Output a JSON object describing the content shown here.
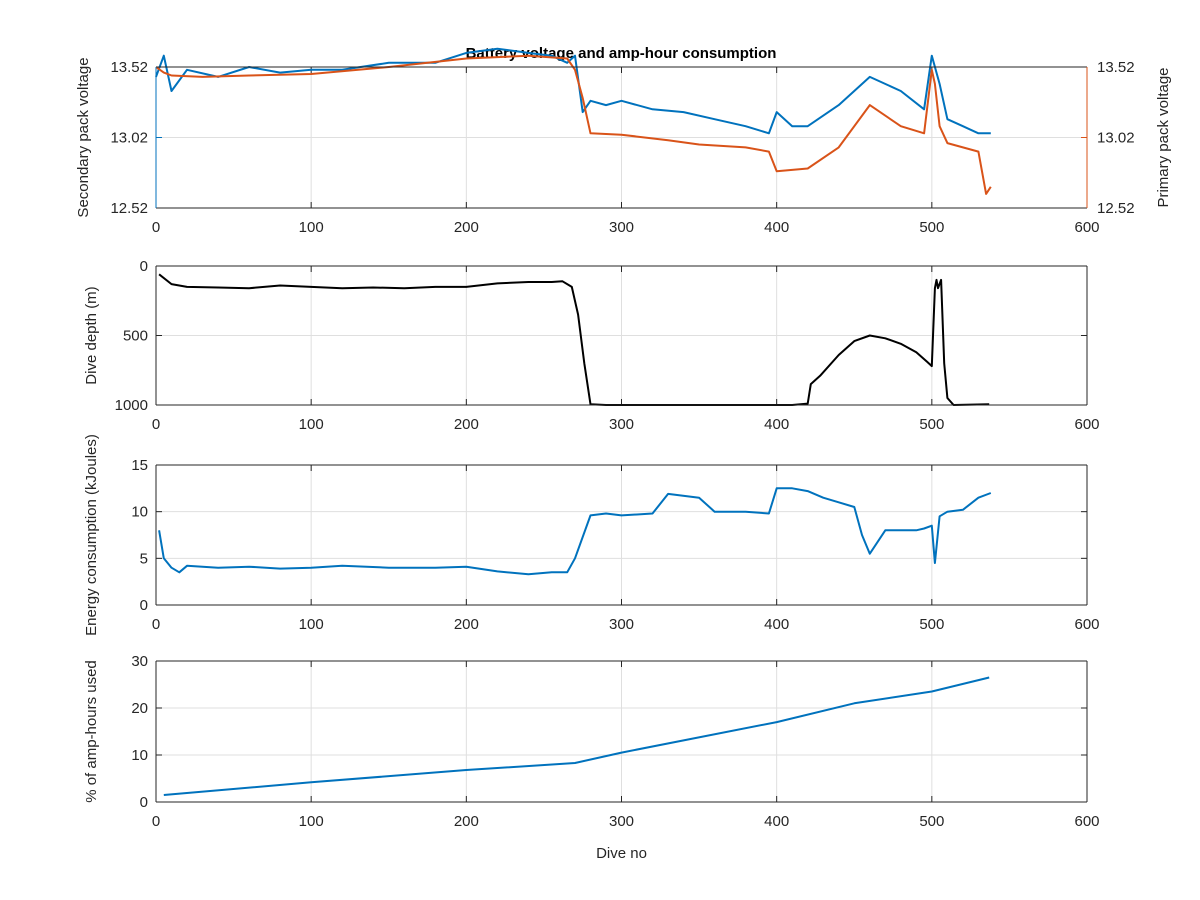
{
  "figure": {
    "title": "Battery voltage and amp-hour consumption",
    "colors": {
      "blue": "#0072bd",
      "orange": "#d95319",
      "black": "#000000",
      "axis": "#262626",
      "grid": "#dfdfdf"
    }
  },
  "chart_data": [
    {
      "type": "line",
      "title": "Battery voltage and amp-hour consumption",
      "xlabel": "",
      "ylabel": "Secondary pack voltage",
      "ylabel_right": "Primary pack voltage",
      "xlim": [
        0,
        600
      ],
      "ylim": [
        12.52,
        13.52
      ],
      "ylim_right": [
        12.52,
        13.52
      ],
      "xticks": [
        "0",
        "100",
        "200",
        "300",
        "400",
        "500",
        "600"
      ],
      "yticks": [
        "12.52",
        "13.02",
        "13.52"
      ],
      "yticks_right": [
        "12.52",
        "13.02",
        "13.52"
      ],
      "grid": true,
      "series": [
        {
          "axis": "left",
          "color": "#0072bd",
          "x": [
            0,
            5,
            10,
            20,
            40,
            60,
            80,
            100,
            120,
            150,
            180,
            200,
            220,
            240,
            255,
            265,
            270,
            275,
            280,
            290,
            300,
            320,
            340,
            360,
            380,
            395,
            400,
            410,
            420,
            440,
            460,
            480,
            495,
            500,
            505,
            510,
            520,
            530,
            538
          ],
          "y": [
            13.45,
            13.6,
            13.35,
            13.5,
            13.45,
            13.52,
            13.48,
            13.5,
            13.5,
            13.55,
            13.55,
            13.62,
            13.65,
            13.62,
            13.6,
            13.55,
            13.6,
            13.2,
            13.28,
            13.25,
            13.28,
            13.22,
            13.2,
            13.15,
            13.1,
            13.05,
            13.2,
            13.1,
            13.1,
            13.25,
            13.45,
            13.35,
            13.22,
            13.6,
            13.4,
            13.15,
            13.1,
            13.05,
            13.05
          ]
        },
        {
          "axis": "right",
          "color": "#d95319",
          "x": [
            0,
            5,
            10,
            30,
            60,
            100,
            150,
            200,
            240,
            265,
            270,
            275,
            280,
            300,
            330,
            350,
            380,
            395,
            400,
            410,
            420,
            440,
            460,
            480,
            495,
            500,
            502,
            505,
            510,
            520,
            530,
            535,
            538
          ],
          "y": [
            13.52,
            13.48,
            13.46,
            13.45,
            13.46,
            13.47,
            13.52,
            13.58,
            13.6,
            13.58,
            13.5,
            13.3,
            13.05,
            13.04,
            13.0,
            12.97,
            12.95,
            12.92,
            12.78,
            12.79,
            12.8,
            12.95,
            13.25,
            13.1,
            13.05,
            13.5,
            13.4,
            13.1,
            12.98,
            12.95,
            12.92,
            12.62,
            12.67
          ]
        }
      ]
    },
    {
      "type": "line",
      "xlabel": "",
      "ylabel": "Dive depth (m)",
      "xlim": [
        0,
        600
      ],
      "ylim": [
        1000,
        0
      ],
      "y_reversed": true,
      "xticks": [
        "0",
        "100",
        "200",
        "300",
        "400",
        "500",
        "600"
      ],
      "yticks": [
        "0",
        "500",
        "1000"
      ],
      "grid": true,
      "series": [
        {
          "color": "#000000",
          "x": [
            2,
            10,
            20,
            40,
            60,
            80,
            100,
            120,
            140,
            160,
            180,
            200,
            220,
            240,
            255,
            262,
            268,
            272,
            276,
            280,
            290,
            320,
            350,
            380,
            410,
            420,
            422,
            428,
            440,
            450,
            460,
            470,
            480,
            490,
            497,
            500,
            502,
            503,
            504,
            506,
            508,
            510,
            514,
            537
          ],
          "y": [
            60,
            130,
            150,
            155,
            160,
            140,
            150,
            160,
            155,
            160,
            150,
            150,
            125,
            115,
            115,
            110,
            150,
            350,
            700,
            995,
            1000,
            1000,
            1000,
            1000,
            1000,
            990,
            850,
            790,
            640,
            540,
            500,
            520,
            560,
            620,
            690,
            720,
            160,
            100,
            160,
            100,
            700,
            950,
            1000,
            995
          ]
        }
      ]
    },
    {
      "type": "line",
      "xlabel": "",
      "ylabel": "Energy consumption (kJoules)",
      "xlim": [
        0,
        600
      ],
      "ylim": [
        0,
        15
      ],
      "xticks": [
        "0",
        "100",
        "200",
        "300",
        "400",
        "500",
        "600"
      ],
      "yticks": [
        "0",
        "5",
        "10",
        "15"
      ],
      "grid": true,
      "series": [
        {
          "color": "#0072bd",
          "x": [
            2,
            5,
            10,
            15,
            20,
            40,
            60,
            80,
            100,
            120,
            150,
            180,
            200,
            220,
            240,
            255,
            265,
            270,
            280,
            290,
            300,
            320,
            330,
            350,
            360,
            380,
            395,
            400,
            410,
            420,
            430,
            440,
            450,
            455,
            460,
            470,
            480,
            490,
            495,
            500,
            502,
            505,
            510,
            520,
            530,
            538
          ],
          "y": [
            8,
            5,
            4,
            3.5,
            4.2,
            4,
            4.1,
            3.9,
            4,
            4.2,
            4,
            4,
            4.1,
            3.6,
            3.3,
            3.5,
            3.5,
            5,
            9.6,
            9.8,
            9.6,
            9.8,
            11.9,
            11.5,
            10,
            10,
            9.8,
            12.5,
            12.5,
            12.2,
            11.5,
            11,
            10.5,
            7.5,
            5.5,
            8,
            8,
            8,
            8.2,
            8.5,
            4.5,
            9.5,
            10,
            10.2,
            11.5,
            12
          ]
        }
      ]
    },
    {
      "type": "line",
      "xlabel": "Dive no",
      "ylabel": "% of amp-hours used",
      "xlim": [
        0,
        600
      ],
      "ylim": [
        0,
        30
      ],
      "xticks": [
        "0",
        "100",
        "200",
        "300",
        "400",
        "500",
        "600"
      ],
      "yticks": [
        "0",
        "10",
        "20",
        "30"
      ],
      "grid": true,
      "series": [
        {
          "color": "#0072bd",
          "x": [
            5,
            100,
            200,
            270,
            300,
            400,
            450,
            500,
            537
          ],
          "y": [
            1.5,
            4.2,
            6.8,
            8.3,
            10.5,
            17,
            21,
            23.5,
            26.5
          ]
        }
      ]
    }
  ]
}
